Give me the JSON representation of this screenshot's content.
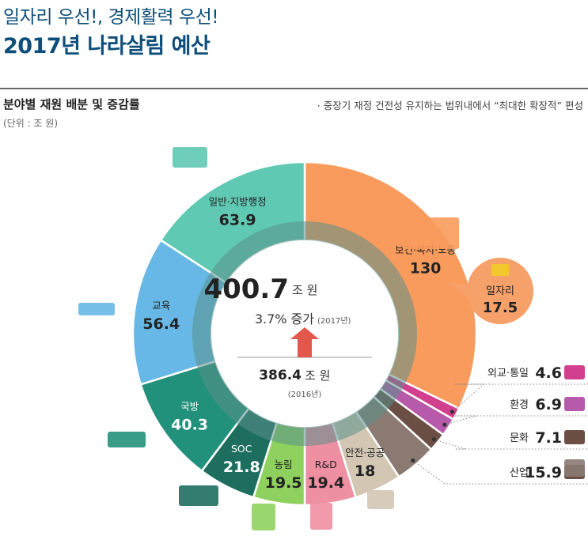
{
  "header": {
    "kicker": "일자리 우선!, 경제활력 우선!",
    "title": "2017년 나라살림 예산"
  },
  "section": {
    "title": "분야별 재원 배분 및 증감률",
    "unit": "(단위 : 조 원)",
    "note": "· 중장기 재정 건전성 유지하는 범위내에서 “최대한 확장적” 편성"
  },
  "center": {
    "total": "400.7",
    "total_unit": "조 원",
    "growth": "3.7% 증가",
    "growth_year": "(2017년)",
    "prev": "386.4",
    "prev_unit": "조 원",
    "prev_year": "(2016년)"
  },
  "colors": {
    "welfare": "#f89b5c",
    "jobs": "#f6a06a",
    "diplomacy": "#d23f8e",
    "environment": "#b85aab",
    "culture": "#6b4f45",
    "industry": "#8a7a72",
    "safety": "#d3c7b4",
    "rnd": "#ee8fa2",
    "agriculture": "#8fd15e",
    "soc": "#1e6e5f",
    "defense": "#22917c",
    "education": "#67b8e6",
    "admin": "#5fc9b4",
    "inner_ring": "#5a8f8a",
    "arrow": "#e4574d",
    "leader": "#888888"
  },
  "chart_data": {
    "type": "pie",
    "unit": "조 원",
    "slices": [
      {
        "key": "welfare",
        "label": "보건·복지·노동",
        "value": 130
      },
      {
        "key": "diplomacy",
        "label": "외교·통일",
        "value": 4.6
      },
      {
        "key": "environment",
        "label": "환경",
        "value": 6.9
      },
      {
        "key": "culture",
        "label": "문화",
        "value": 7.1
      },
      {
        "key": "industry",
        "label": "산업",
        "value": 15.9
      },
      {
        "key": "safety",
        "label": "안전·공공",
        "value": 18
      },
      {
        "key": "rnd",
        "label": "R&D",
        "value": 19.4
      },
      {
        "key": "agriculture",
        "label": "농림",
        "value": 19.5
      },
      {
        "key": "soc",
        "label": "SOC",
        "value": 21.8
      },
      {
        "key": "defense",
        "label": "국방",
        "value": 40.3
      },
      {
        "key": "education",
        "label": "교육",
        "value": 56.4
      },
      {
        "key": "admin",
        "label": "일반·지방행정",
        "value": 63.9
      }
    ],
    "callout": {
      "label": "일자리",
      "value": 17.5
    }
  }
}
